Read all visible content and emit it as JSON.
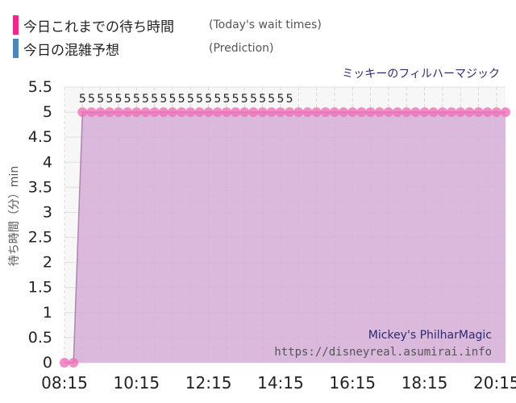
{
  "legend": {
    "today": {
      "label": "今日これまでの待ち時間",
      "sub": "(Today's wait times)",
      "color": "#f0288c"
    },
    "prediction": {
      "label": "今日の混雑予想",
      "sub": "(Prediction)",
      "color": "#4a86b8"
    }
  },
  "attraction_jp": "ミッキーのフィルハーマジック",
  "watermark": {
    "name": "Mickey's PhilharMagic",
    "url": "https://disneyreal.asumirai.info"
  },
  "chart_data": {
    "type": "area",
    "ylabel": "待ち時間（分）min",
    "ylim": [
      0,
      5.5
    ],
    "yticks": [
      "0",
      "0.5",
      "1",
      "1.5",
      "2",
      "2.5",
      "3",
      "3.5",
      "4",
      "4.5",
      "5",
      "5.5"
    ],
    "xticks": [
      "08:15",
      "10:15",
      "12:15",
      "14:15",
      "16:15",
      "18:15",
      "20:15"
    ],
    "x_range_minutes": [
      495,
      1230
    ],
    "series": [
      {
        "x": [
          "08:15",
          "08:30",
          "08:45",
          "09:00",
          "09:15",
          "09:30",
          "09:45",
          "10:00",
          "10:15",
          "10:30",
          "10:45",
          "11:00",
          "11:15",
          "11:30",
          "11:45",
          "12:00",
          "12:15",
          "12:30",
          "12:45",
          "13:00",
          "13:15",
          "13:30",
          "13:45",
          "14:00",
          "14:15",
          "14:30",
          "14:45",
          "15:00",
          "15:15",
          "15:30",
          "15:45",
          "16:00",
          "16:15",
          "16:30",
          "16:45",
          "17:00",
          "17:15",
          "17:30",
          "17:45",
          "18:00",
          "18:15",
          "18:30",
          "18:45",
          "19:00",
          "19:15",
          "19:30",
          "19:45",
          "20:00",
          "20:15",
          "20:30"
        ],
        "values": [
          0,
          0,
          5,
          5,
          5,
          5,
          5,
          5,
          5,
          5,
          5,
          5,
          5,
          5,
          5,
          5,
          5,
          5,
          5,
          5,
          5,
          5,
          5,
          5,
          5,
          5,
          5,
          5,
          5,
          5,
          5,
          5,
          5,
          5,
          5,
          5,
          5,
          5,
          5,
          5,
          5,
          5,
          5,
          5,
          5,
          5,
          5,
          5,
          5,
          5
        ],
        "labels": [
          "",
          "",
          "5",
          "5",
          "5",
          "5",
          "5",
          "5",
          "5",
          "5",
          "5",
          "5",
          "5",
          "5",
          "5",
          "5",
          "5",
          "5",
          "5",
          "5",
          "5",
          "5",
          "5",
          "5",
          "5",
          "5"
        ]
      }
    ],
    "colors": {
      "fill": "#d5aed8",
      "line": "#b481b6",
      "point": "#f070b8"
    }
  }
}
